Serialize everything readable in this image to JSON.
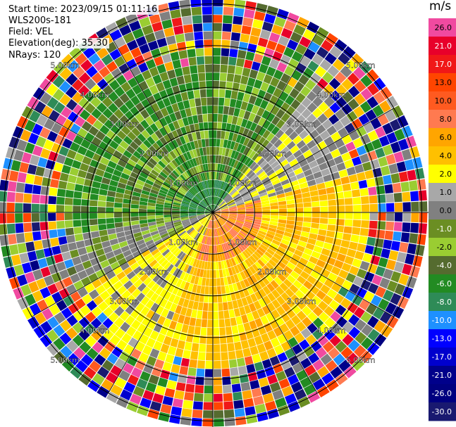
{
  "info": {
    "start_time": "Start time: 2023/09/15 01:11:16",
    "instrument": "WLS200s-181",
    "field": "Field: VEL",
    "elevation": "Elevation(deg): 35.30",
    "nrays": "NRays: 120"
  },
  "rings": {
    "labels": [
      "1.00km",
      "2.00km",
      "3.00km",
      "4.00km",
      "5.00km"
    ]
  },
  "colorbar": {
    "unit": "m/s",
    "levels": [
      {
        "label": "26.0",
        "color": "#f04aa0"
      },
      {
        "label": "21.0",
        "color": "#e8002a"
      },
      {
        "label": "17.0",
        "color": "#f01818"
      },
      {
        "label": "13.0",
        "color": "#ff4500"
      },
      {
        "label": "10.0",
        "color": "#ff5a20"
      },
      {
        "label": "8.0",
        "color": "#ff7a50"
      },
      {
        "label": "6.0",
        "color": "#ffa500"
      },
      {
        "label": "4.0",
        "color": "#ffc000"
      },
      {
        "label": "2.0",
        "color": "#ffff00"
      },
      {
        "label": "1.0",
        "color": "#a8a8a8"
      },
      {
        "label": "0.0",
        "color": "#808080"
      },
      {
        "label": "-1.0",
        "color": "#6b8e23"
      },
      {
        "label": "-2.0",
        "color": "#9acd32"
      },
      {
        "label": "-4.0",
        "color": "#556b2f"
      },
      {
        "label": "-6.0",
        "color": "#228b22"
      },
      {
        "label": "-8.0",
        "color": "#2e8b57"
      },
      {
        "label": "-10.0",
        "color": "#1e90ff"
      },
      {
        "label": "-13.0",
        "color": "#0000ff"
      },
      {
        "label": "-17.0",
        "color": "#0000cd"
      },
      {
        "label": "-21.0",
        "color": "#00008b"
      },
      {
        "label": "-26.0",
        "color": "#000080"
      },
      {
        "label": "-30.0",
        "color": "#191970"
      }
    ]
  }
}
